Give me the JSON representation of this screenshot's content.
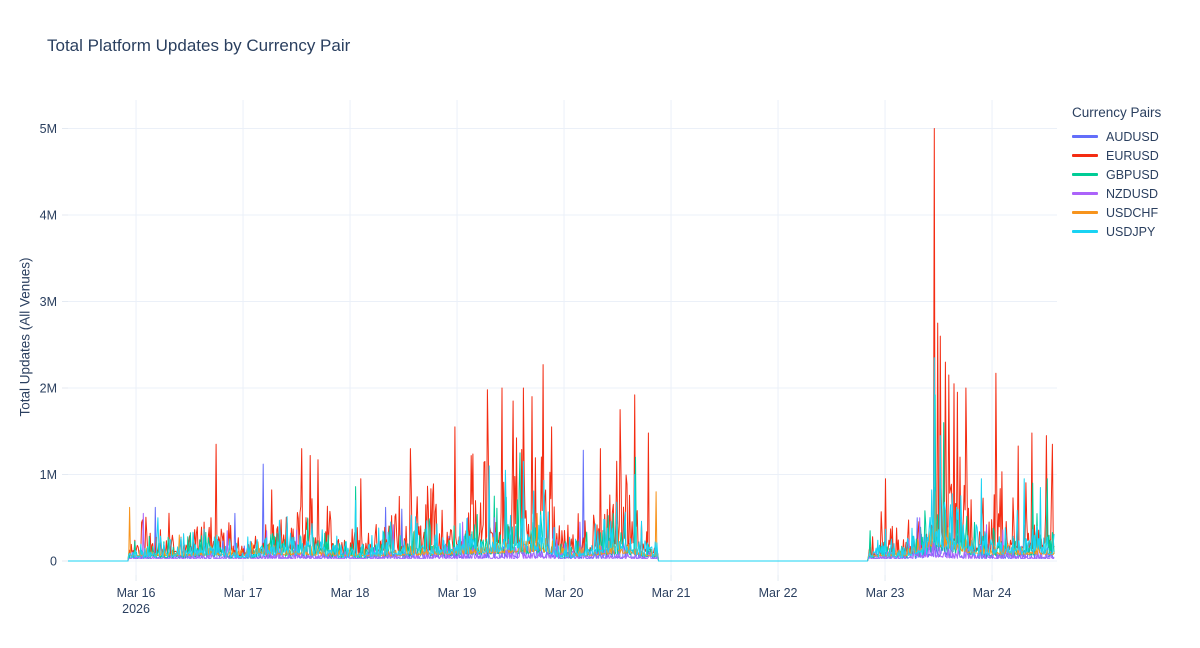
{
  "chart_data": {
    "type": "line",
    "title": "Total Platform Updates by Currency Pair",
    "xlabel": "",
    "ylabel": "Total Updates (All Venues)",
    "legend_title": "Currency Pairs",
    "legend_position": "right",
    "grid": true,
    "text_color": "#2a3f5f",
    "grid_color": "#EBF0F8",
    "tick_mark_color": "#E4EAF2",
    "x_unit": "days since Mar 16 2026 00:00",
    "x_range": [
      -0.636,
      8.61
    ],
    "y_range_millions": [
      -0.16,
      5.33
    ],
    "x_ticks": [
      {
        "t": 0,
        "label": "Mar 16",
        "sub": "2026"
      },
      {
        "t": 1,
        "label": "Mar 17"
      },
      {
        "t": 2,
        "label": "Mar 18"
      },
      {
        "t": 3,
        "label": "Mar 19"
      },
      {
        "t": 4,
        "label": "Mar 20"
      },
      {
        "t": 5,
        "label": "Mar 21"
      },
      {
        "t": 6,
        "label": "Mar 22"
      },
      {
        "t": 7,
        "label": "Mar 23"
      },
      {
        "t": 8,
        "label": "Mar 24"
      }
    ],
    "y_ticks": [
      {
        "v": 0,
        "label": "0"
      },
      {
        "v": 1,
        "label": "1M"
      },
      {
        "v": 2,
        "label": "2M"
      },
      {
        "v": 3,
        "label": "3M"
      },
      {
        "v": 4,
        "label": "4M"
      },
      {
        "v": 5,
        "label": "5M"
      }
    ],
    "sessions": [
      [
        -0.07,
        4.88
      ],
      [
        6.84,
        8.58
      ]
    ],
    "sample_step_days": 0.008,
    "series": [
      {
        "name": "AUDUSD",
        "color": "#636EFA",
        "seed": 11,
        "floor": 0.1,
        "base_level": 0.03,
        "envelope": [
          [
            -0.07,
            0.18
          ],
          [
            0.3,
            0.22
          ],
          [
            0.75,
            0.3
          ],
          [
            1.2,
            0.3
          ],
          [
            1.6,
            0.32
          ],
          [
            2.0,
            0.2
          ],
          [
            2.6,
            0.28
          ],
          [
            3.3,
            0.35
          ],
          [
            3.8,
            0.38
          ],
          [
            4.1,
            0.2
          ],
          [
            4.5,
            0.3
          ],
          [
            4.88,
            0.15
          ],
          [
            6.84,
            0.1
          ],
          [
            7.2,
            0.2
          ],
          [
            7.46,
            0.5
          ],
          [
            7.7,
            0.35
          ],
          [
            8.0,
            0.25
          ],
          [
            8.58,
            0.25
          ]
        ],
        "spikes": [
          [
            0.18,
            0.62
          ],
          [
            0.92,
            0.55
          ],
          [
            1.19,
            1.12
          ],
          [
            2.33,
            0.62
          ],
          [
            2.48,
            0.6
          ],
          [
            3.1,
            0.5
          ],
          [
            4.18,
            1.28
          ],
          [
            7.3,
            0.5
          ],
          [
            7.46,
            0.85
          ]
        ]
      },
      {
        "name": "EURUSD",
        "color": "#F42C12",
        "seed": 23,
        "floor": 0.12,
        "base_level": 0.04,
        "envelope": [
          [
            -0.07,
            0.55
          ],
          [
            0.2,
            0.7
          ],
          [
            0.5,
            0.7
          ],
          [
            0.75,
            1.0
          ],
          [
            0.95,
            0.45
          ],
          [
            1.2,
            0.85
          ],
          [
            1.45,
            1.0
          ],
          [
            1.6,
            1.1
          ],
          [
            1.8,
            0.9
          ],
          [
            2.0,
            0.55
          ],
          [
            2.3,
            0.85
          ],
          [
            2.6,
            1.05
          ],
          [
            2.85,
            1.0
          ],
          [
            3.0,
            1.15
          ],
          [
            3.3,
            1.55
          ],
          [
            3.6,
            1.65
          ],
          [
            3.82,
            1.75
          ],
          [
            3.95,
            0.6
          ],
          [
            4.1,
            0.6
          ],
          [
            4.35,
            1.2
          ],
          [
            4.55,
            1.6
          ],
          [
            4.7,
            1.1
          ],
          [
            4.88,
            0.5
          ],
          [
            6.84,
            0.3
          ],
          [
            7.0,
            0.75
          ],
          [
            7.15,
            0.5
          ],
          [
            7.3,
            0.8
          ],
          [
            7.42,
            1.1
          ],
          [
            7.46,
            2.6
          ],
          [
            7.55,
            2.0
          ],
          [
            7.65,
            1.8
          ],
          [
            7.76,
            1.5
          ],
          [
            7.85,
            0.8
          ],
          [
            7.95,
            0.9
          ],
          [
            8.05,
            1.2
          ],
          [
            8.2,
            1.0
          ],
          [
            8.35,
            1.2
          ],
          [
            8.5,
            1.2
          ],
          [
            8.58,
            1.15
          ]
        ],
        "spikes": [
          [
            0.75,
            1.35
          ],
          [
            1.55,
            1.3
          ],
          [
            1.63,
            1.22
          ],
          [
            1.7,
            1.17
          ],
          [
            2.1,
            0.95
          ],
          [
            2.56,
            1.3
          ],
          [
            2.98,
            1.55
          ],
          [
            3.28,
            1.98
          ],
          [
            3.42,
            2.0
          ],
          [
            3.52,
            1.85
          ],
          [
            3.62,
            2.0
          ],
          [
            3.7,
            1.9
          ],
          [
            3.8,
            2.27
          ],
          [
            3.88,
            1.55
          ],
          [
            4.34,
            1.3
          ],
          [
            4.52,
            1.75
          ],
          [
            4.66,
            1.92
          ],
          [
            4.79,
            1.48
          ],
          [
            7.0,
            0.95
          ],
          [
            7.458,
            5.0
          ],
          [
            7.49,
            2.75
          ],
          [
            7.52,
            2.6
          ],
          [
            7.56,
            2.3
          ],
          [
            7.6,
            2.15
          ],
          [
            7.64,
            2.05
          ],
          [
            7.68,
            1.95
          ],
          [
            7.76,
            2.0
          ],
          [
            8.04,
            2.17
          ],
          [
            8.24,
            1.33
          ],
          [
            8.37,
            1.48
          ],
          [
            8.51,
            1.45
          ],
          [
            8.56,
            1.35
          ]
        ]
      },
      {
        "name": "GBPUSD",
        "color": "#00CC96",
        "seed": 37,
        "floor": 0.1,
        "base_level": 0.03,
        "envelope": [
          [
            -0.07,
            0.28
          ],
          [
            0.3,
            0.35
          ],
          [
            0.75,
            0.5
          ],
          [
            0.95,
            0.22
          ],
          [
            1.2,
            0.45
          ],
          [
            1.6,
            0.55
          ],
          [
            2.0,
            0.3
          ],
          [
            2.3,
            0.45
          ],
          [
            2.6,
            0.55
          ],
          [
            3.0,
            0.6
          ],
          [
            3.3,
            0.8
          ],
          [
            3.6,
            0.85
          ],
          [
            3.82,
            0.9
          ],
          [
            3.95,
            0.3
          ],
          [
            4.35,
            0.6
          ],
          [
            4.55,
            0.8
          ],
          [
            4.88,
            0.28
          ],
          [
            6.84,
            0.2
          ],
          [
            7.0,
            0.4
          ],
          [
            7.3,
            0.45
          ],
          [
            7.46,
            1.2
          ],
          [
            7.6,
            0.9
          ],
          [
            7.76,
            0.7
          ],
          [
            7.9,
            0.45
          ],
          [
            8.1,
            0.55
          ],
          [
            8.35,
            0.65
          ],
          [
            8.58,
            0.6
          ]
        ],
        "spikes": [
          [
            2.05,
            0.86
          ],
          [
            3.59,
            1.25
          ],
          [
            4.67,
            1.2
          ],
          [
            6.86,
            0.35
          ],
          [
            7.465,
            1.92
          ],
          [
            7.55,
            1.6
          ],
          [
            8.38,
            0.9
          ],
          [
            8.52,
            0.95
          ]
        ]
      },
      {
        "name": "NZDUSD",
        "color": "#AB63FA",
        "seed": 51,
        "floor": 0.1,
        "base_level": 0.03,
        "envelope": [
          [
            -0.07,
            0.12
          ],
          [
            0.75,
            0.18
          ],
          [
            1.6,
            0.18
          ],
          [
            2.6,
            0.18
          ],
          [
            3.3,
            0.25
          ],
          [
            3.82,
            0.28
          ],
          [
            4.55,
            0.25
          ],
          [
            4.88,
            0.12
          ],
          [
            6.84,
            0.1
          ],
          [
            7.46,
            0.4
          ],
          [
            7.8,
            0.25
          ],
          [
            8.58,
            0.2
          ]
        ],
        "spikes": [
          [
            0.07,
            0.55
          ],
          [
            0.85,
            0.35
          ],
          [
            1.22,
            0.35
          ],
          [
            1.5,
            0.36
          ],
          [
            2.4,
            0.42
          ],
          [
            3.05,
            0.45
          ],
          [
            3.35,
            0.5
          ],
          [
            3.9,
            0.38
          ],
          [
            4.15,
            0.45
          ],
          [
            7.32,
            0.5
          ],
          [
            7.62,
            0.5
          ],
          [
            7.95,
            0.42
          ],
          [
            8.1,
            0.36
          ]
        ]
      },
      {
        "name": "USDCHF",
        "color": "#F7941D",
        "seed": 67,
        "floor": 0.3,
        "base_level": 0.06,
        "envelope": [
          [
            -0.07,
            0.16
          ],
          [
            0.75,
            0.22
          ],
          [
            1.6,
            0.24
          ],
          [
            2.0,
            0.16
          ],
          [
            2.6,
            0.22
          ],
          [
            3.3,
            0.3
          ],
          [
            3.82,
            0.35
          ],
          [
            4.1,
            0.18
          ],
          [
            4.55,
            0.3
          ],
          [
            4.88,
            0.15
          ],
          [
            6.84,
            0.12
          ],
          [
            7.2,
            0.2
          ],
          [
            7.46,
            0.6
          ],
          [
            7.6,
            0.5
          ],
          [
            7.8,
            0.3
          ],
          [
            8.0,
            0.25
          ],
          [
            8.58,
            0.25
          ]
        ],
        "spikes": [
          [
            -0.06,
            0.62
          ],
          [
            0.4,
            0.3
          ],
          [
            2.6,
            0.35
          ],
          [
            3.75,
            0.55
          ],
          [
            4.5,
            0.42
          ],
          [
            4.86,
            0.8
          ],
          [
            7.47,
            0.8
          ],
          [
            7.55,
            0.6
          ]
        ]
      },
      {
        "name": "USDJPY",
        "color": "#19D3F3",
        "seed": 83,
        "floor": 0.12,
        "base_level": 0.04,
        "envelope": [
          [
            -0.07,
            0.3
          ],
          [
            0.2,
            0.4
          ],
          [
            0.75,
            0.55
          ],
          [
            0.95,
            0.25
          ],
          [
            1.2,
            0.5
          ],
          [
            1.6,
            0.6
          ],
          [
            2.0,
            0.3
          ],
          [
            2.3,
            0.5
          ],
          [
            2.6,
            0.6
          ],
          [
            3.0,
            0.65
          ],
          [
            3.3,
            0.85
          ],
          [
            3.6,
            0.95
          ],
          [
            3.82,
            1.0
          ],
          [
            3.95,
            0.35
          ],
          [
            4.1,
            0.35
          ],
          [
            4.35,
            0.7
          ],
          [
            4.55,
            0.9
          ],
          [
            4.7,
            0.6
          ],
          [
            4.88,
            0.3
          ],
          [
            6.84,
            0.2
          ],
          [
            7.0,
            0.45
          ],
          [
            7.15,
            0.3
          ],
          [
            7.3,
            0.5
          ],
          [
            7.42,
            0.7
          ],
          [
            7.46,
            1.5
          ],
          [
            7.55,
            1.2
          ],
          [
            7.65,
            1.0
          ],
          [
            7.76,
            0.9
          ],
          [
            7.85,
            0.5
          ],
          [
            7.95,
            0.55
          ],
          [
            8.05,
            0.7
          ],
          [
            8.2,
            0.6
          ],
          [
            8.35,
            0.7
          ],
          [
            8.5,
            0.7
          ],
          [
            8.58,
            0.65
          ]
        ],
        "spikes": [
          [
            0.2,
            0.5
          ],
          [
            2.05,
            0.7
          ],
          [
            3.3,
            1.1
          ],
          [
            3.45,
            1.05
          ],
          [
            3.62,
            1.15
          ],
          [
            4.66,
            1.0
          ],
          [
            7.458,
            2.35
          ],
          [
            7.52,
            1.45
          ],
          [
            7.9,
            0.95
          ],
          [
            8.3,
            0.95
          ],
          [
            8.45,
            0.85
          ]
        ]
      }
    ]
  }
}
